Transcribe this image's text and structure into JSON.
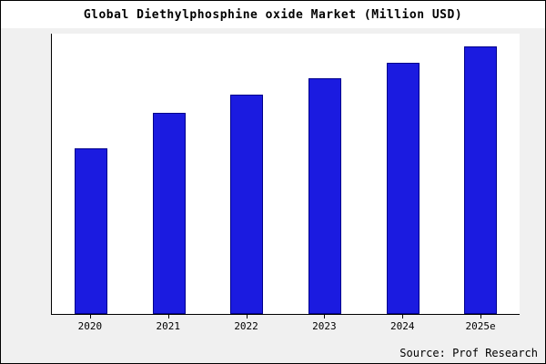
{
  "title": "Global Diethylphosphine oxide Market (Million USD)",
  "source": "Source: Prof Research",
  "colors": {
    "bar_fill": "#1b1be0",
    "bar_border": "#00008b",
    "background": "#f0f0f0",
    "plot_background": "#ffffff",
    "axis": "#000000"
  },
  "chart_data": {
    "type": "bar",
    "title": "Global Diethylphosphine oxide Market (Million USD)",
    "categories": [
      "2020",
      "2021",
      "2022",
      "2023",
      "2024",
      "2025e"
    ],
    "values": [
      62,
      75,
      82,
      88,
      94,
      100
    ],
    "xlabel": "",
    "ylabel": "",
    "ylim": [
      0,
      105
    ],
    "grid": false,
    "legend": false,
    "annotation": "Source: Prof Research"
  }
}
